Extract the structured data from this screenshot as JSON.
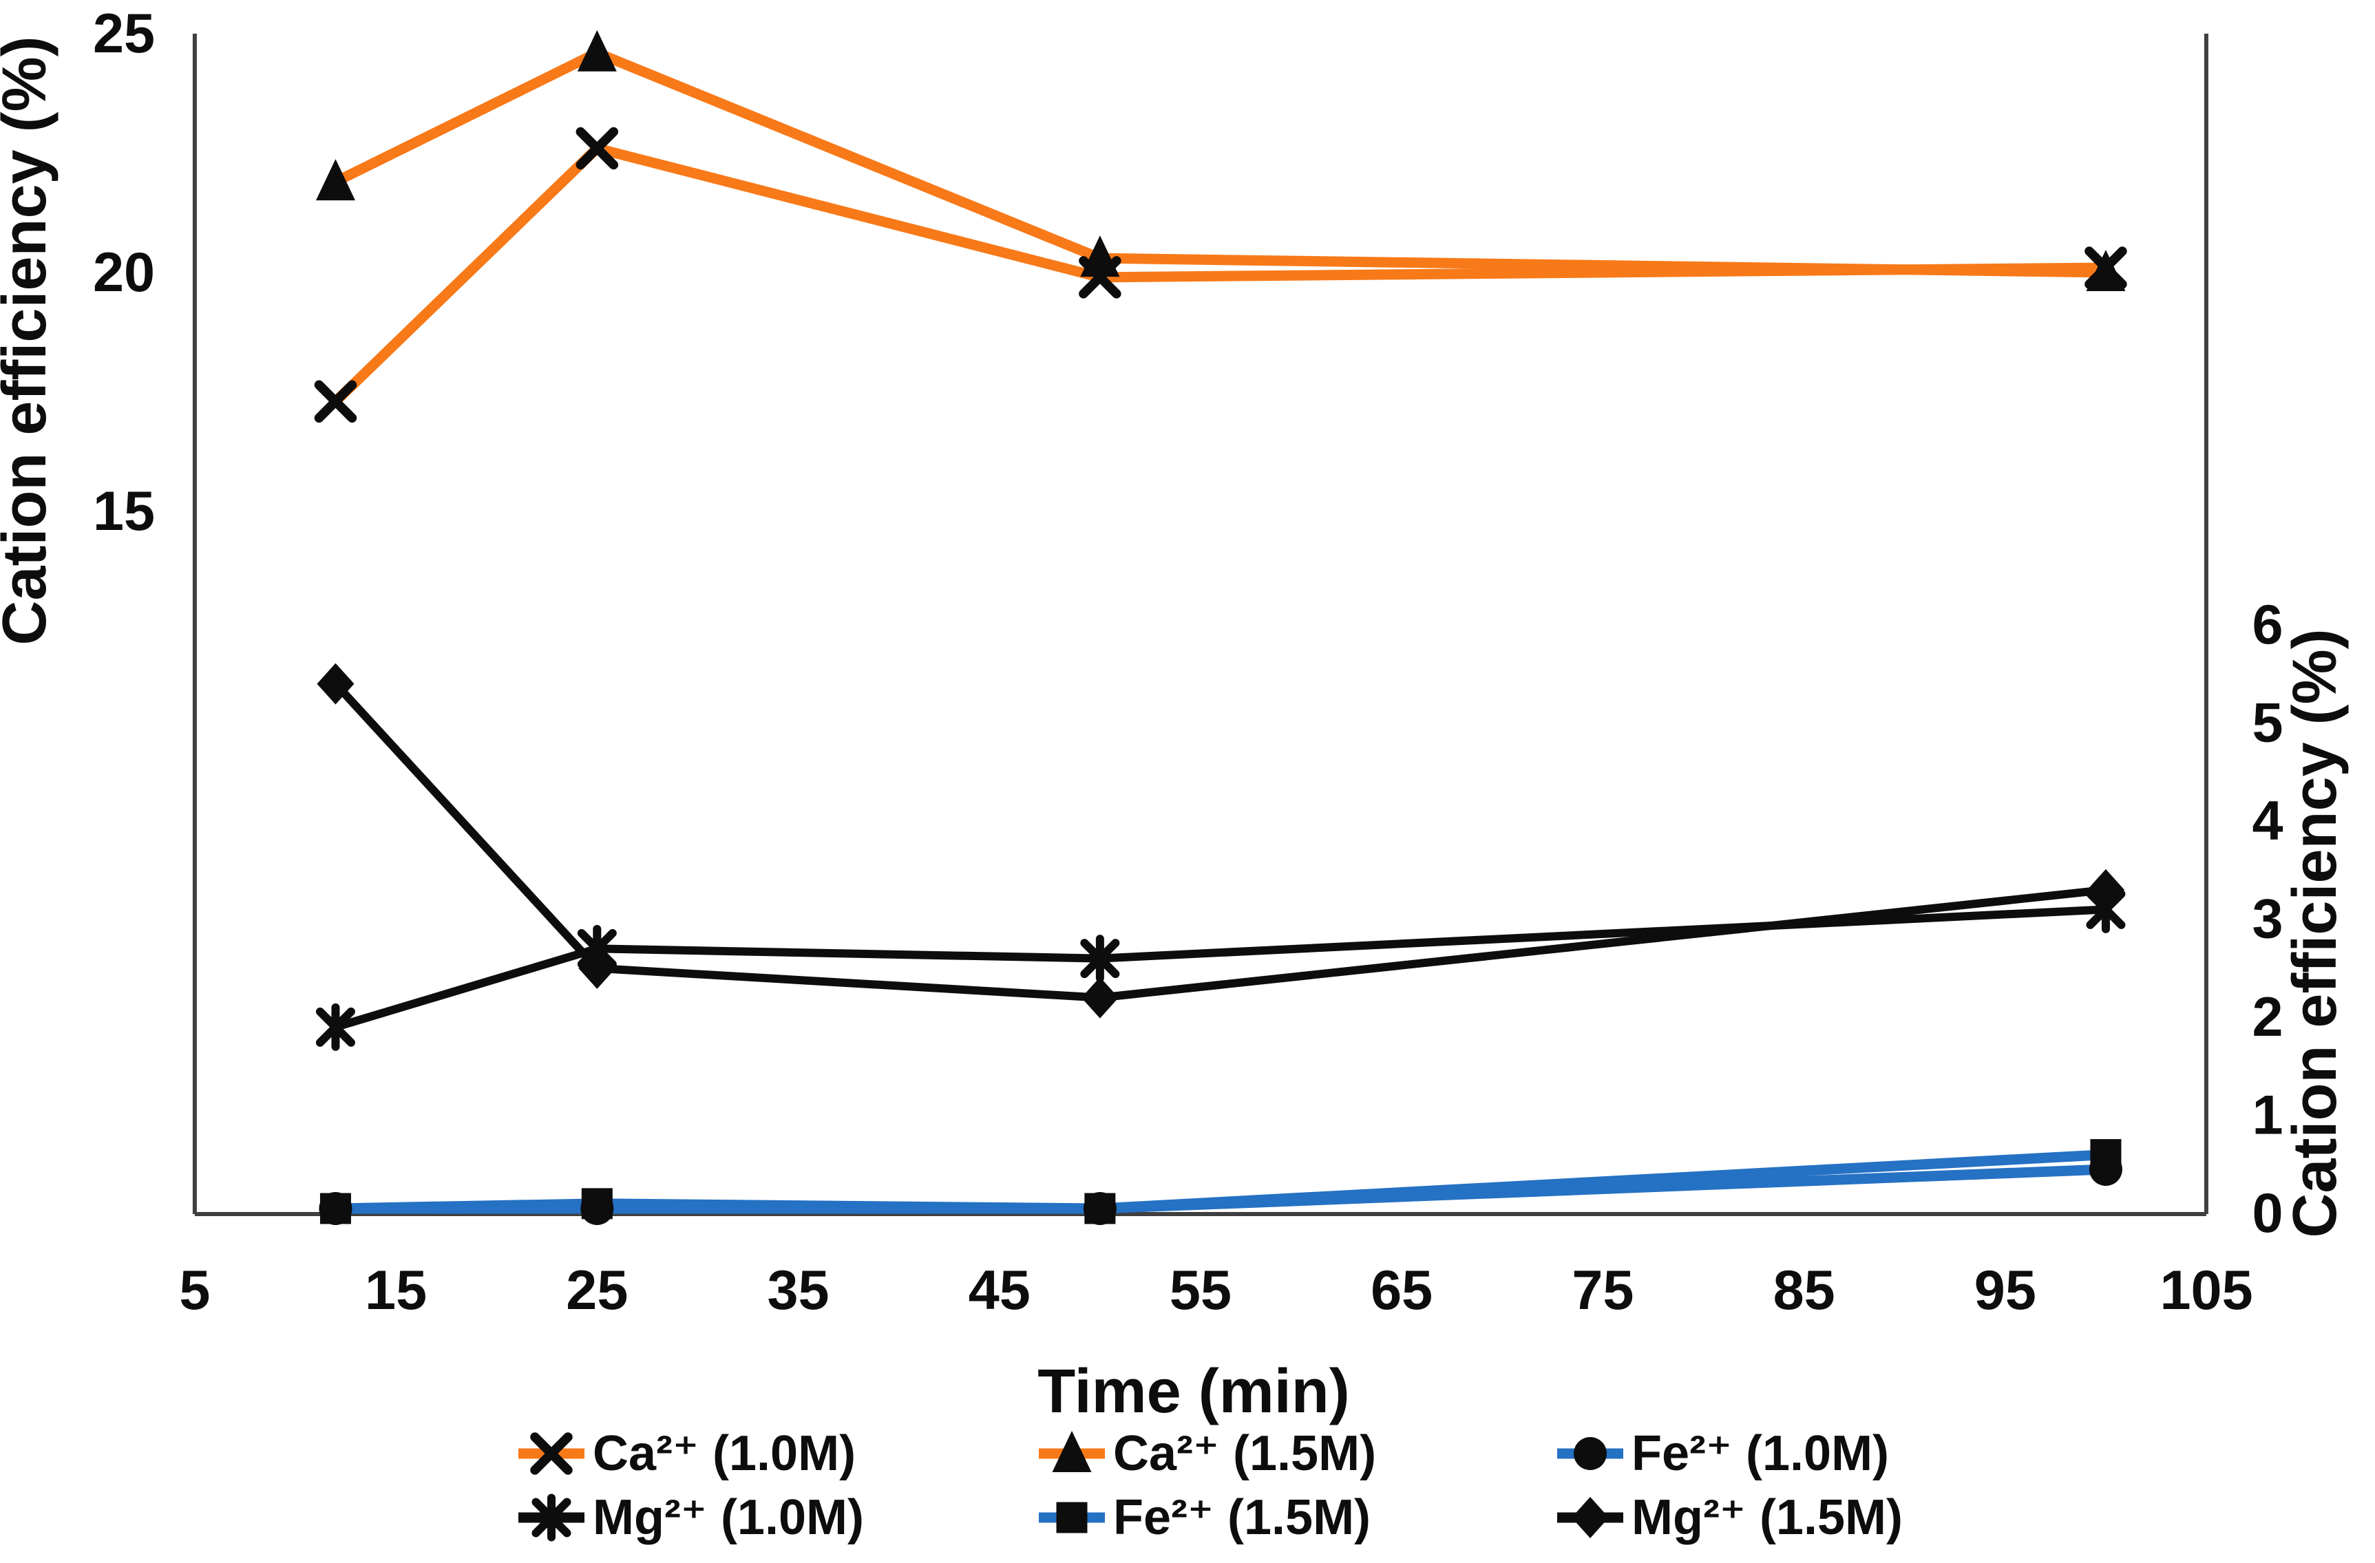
{
  "figure": {
    "background": "#ffffff",
    "left_axis": {
      "title": "Cation efficiency (%)",
      "tick_labels": [
        "25",
        "20",
        "15"
      ],
      "tick_values": [
        25,
        20,
        15
      ],
      "range": [
        0,
        25
      ]
    },
    "right_axis": {
      "title": "Cation efficiency (%)",
      "tick_labels": [
        "6",
        "5",
        "4",
        "3",
        "2",
        "1",
        "0"
      ],
      "tick_values": [
        6,
        5,
        4,
        3,
        2,
        1,
        0
      ],
      "labeled_range": [
        0,
        6
      ]
    },
    "x_axis": {
      "title": "Time (min)",
      "tick_labels": [
        "5",
        "15",
        "25",
        "35",
        "45",
        "55",
        "65",
        "75",
        "85",
        "95",
        "105"
      ],
      "tick_values": [
        5,
        15,
        25,
        35,
        45,
        55,
        65,
        75,
        85,
        95,
        105
      ],
      "range": [
        5,
        105
      ]
    },
    "colors": {
      "orange_series": "#f87918",
      "blue_series": "#2571c4",
      "black_series": "#0d0d0d",
      "axis_line": "#3f3f3f",
      "marker": "#0d0d0d"
    }
  },
  "chart_data": {
    "type": "line",
    "x": [
      12,
      25,
      50,
      100
    ],
    "xlabel": "Time (min)",
    "ylabel_left": "Cation efficiency (%)",
    "ylabel_right": "Cation efficiency (%)",
    "grid": false,
    "legend_position": "bottom",
    "left_axis_ticks_shown": [
      25,
      20,
      15
    ],
    "right_axis_ticks_shown": [
      6,
      5,
      4,
      3,
      2,
      1,
      0
    ],
    "series": [
      {
        "name": "Ca²⁺ (1.0M)",
        "marker": "x",
        "color": "#f87918",
        "line_width": 5,
        "axis": "left",
        "values": [
          17.3,
          22.6,
          19.9,
          20.1
        ]
      },
      {
        "name": "Ca²⁺ (1.5M)",
        "marker": "triangle",
        "color": "#f87918",
        "line_width": 5,
        "axis": "left",
        "values": [
          21.9,
          24.6,
          20.3,
          20.0
        ]
      },
      {
        "name": "Fe²⁺ (1.0M)",
        "marker": "circle",
        "color": "#2571c4",
        "line_width": 5,
        "axis": "right",
        "values": [
          0.05,
          0.05,
          0.05,
          0.45
        ]
      },
      {
        "name": "Mg²⁺ (1.0M)",
        "marker": "asterisk",
        "color": "#0d0d0d",
        "line_width": 4,
        "axis": "right",
        "values": [
          1.9,
          2.7,
          2.6,
          3.1
        ]
      },
      {
        "name": "Fe²⁺ (1.5M)",
        "marker": "square",
        "color": "#2571c4",
        "line_width": 5,
        "axis": "right",
        "values": [
          0.05,
          0.1,
          0.05,
          0.6
        ]
      },
      {
        "name": "Mg²⁺ (1.5M)",
        "marker": "diamond",
        "color": "#0d0d0d",
        "line_width": 4,
        "axis": "right",
        "values": [
          5.4,
          2.5,
          2.2,
          3.3
        ]
      }
    ],
    "legend_rows": [
      [
        "Ca²⁺ (1.0M)",
        "Ca²⁺ (1.5M)",
        "Fe²⁺ (1.0M)"
      ],
      [
        "Mg²⁺ (1.0M)",
        "Fe²⁺ (1.5M)",
        "Mg²⁺ (1.5M)"
      ]
    ]
  }
}
